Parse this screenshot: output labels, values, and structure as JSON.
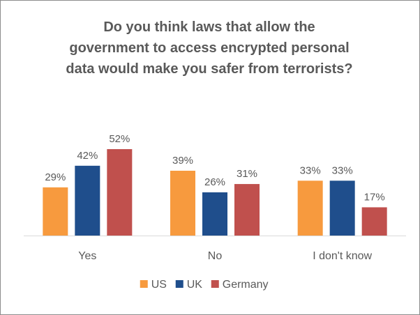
{
  "chart_data": {
    "type": "bar",
    "title_lines": [
      "Do you think laws that allow the",
      "government to access encrypted personal",
      "data would make you safer from terrorists?"
    ],
    "categories": [
      "Yes",
      "No",
      "I don't know"
    ],
    "series": [
      {
        "name": "US",
        "values": [
          29,
          39,
          33
        ],
        "labels": [
          "29%",
          "39%",
          "33%"
        ],
        "color": "#F79A3E"
      },
      {
        "name": "UK",
        "values": [
          42,
          26,
          33
        ],
        "labels": [
          "42%",
          "26%",
          "33%"
        ],
        "color": "#1F4E8C"
      },
      {
        "name": "Germany",
        "values": [
          52,
          31,
          17
        ],
        "labels": [
          "52%",
          "31%",
          "17%"
        ],
        "color": "#C0504D"
      }
    ],
    "ylim": [
      0,
      60
    ],
    "grid": false,
    "legend_position": "bottom"
  }
}
